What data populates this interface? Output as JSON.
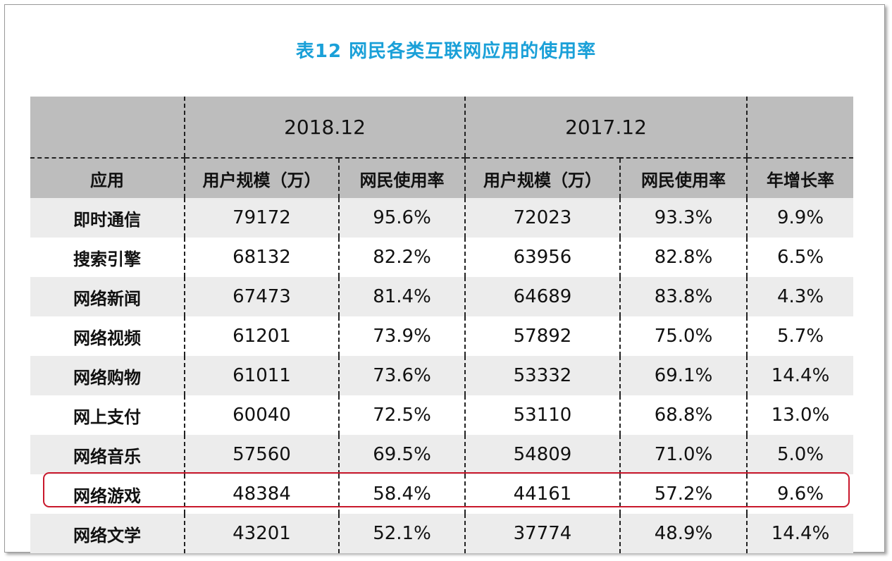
{
  "title": "表12  网民各类互联网应用的使用率",
  "header": {
    "period_2018": "2018.12",
    "period_2017": "2017.12",
    "col_app": "应用",
    "col_users_2018": "用户规模（万）",
    "col_rate_2018": "网民使用率",
    "col_users_2017": "用户规模（万）",
    "col_rate_2017": "网民使用率",
    "col_growth": "年增长率"
  },
  "rows": [
    {
      "app": "即时通信",
      "users_2018": "79172",
      "rate_2018": "95.6%",
      "users_2017": "72023",
      "rate_2017": "93.3%",
      "growth": "9.9%"
    },
    {
      "app": "搜索引擎",
      "users_2018": "68132",
      "rate_2018": "82.2%",
      "users_2017": "63956",
      "rate_2017": "82.8%",
      "growth": "6.5%"
    },
    {
      "app": "网络新闻",
      "users_2018": "67473",
      "rate_2018": "81.4%",
      "users_2017": "64689",
      "rate_2017": "83.8%",
      "growth": "4.3%"
    },
    {
      "app": "网络视频",
      "users_2018": "61201",
      "rate_2018": "73.9%",
      "users_2017": "57892",
      "rate_2017": "75.0%",
      "growth": "5.7%"
    },
    {
      "app": "网络购物",
      "users_2018": "61011",
      "rate_2018": "73.6%",
      "users_2017": "53332",
      "rate_2017": "69.1%",
      "growth": "14.4%"
    },
    {
      "app": "网上支付",
      "users_2018": "60040",
      "rate_2018": "72.5%",
      "users_2017": "53110",
      "rate_2017": "68.8%",
      "growth": "13.0%"
    },
    {
      "app": "网络音乐",
      "users_2018": "57560",
      "rate_2018": "69.5%",
      "users_2017": "54809",
      "rate_2017": "71.0%",
      "growth": "5.0%"
    },
    {
      "app": "网络游戏",
      "users_2018": "48384",
      "rate_2018": "58.4%",
      "users_2017": "44161",
      "rate_2017": "57.2%",
      "growth": "9.6%"
    },
    {
      "app": "网络文学",
      "users_2018": "43201",
      "rate_2018": "52.1%",
      "users_2017": "37774",
      "rate_2017": "48.9%",
      "growth": "14.4%"
    }
  ],
  "highlight_color": "#c9182c",
  "title_color": "#1aa0d8",
  "header_bg": "#bdbdbd",
  "stripe_bg": "#ececec"
}
